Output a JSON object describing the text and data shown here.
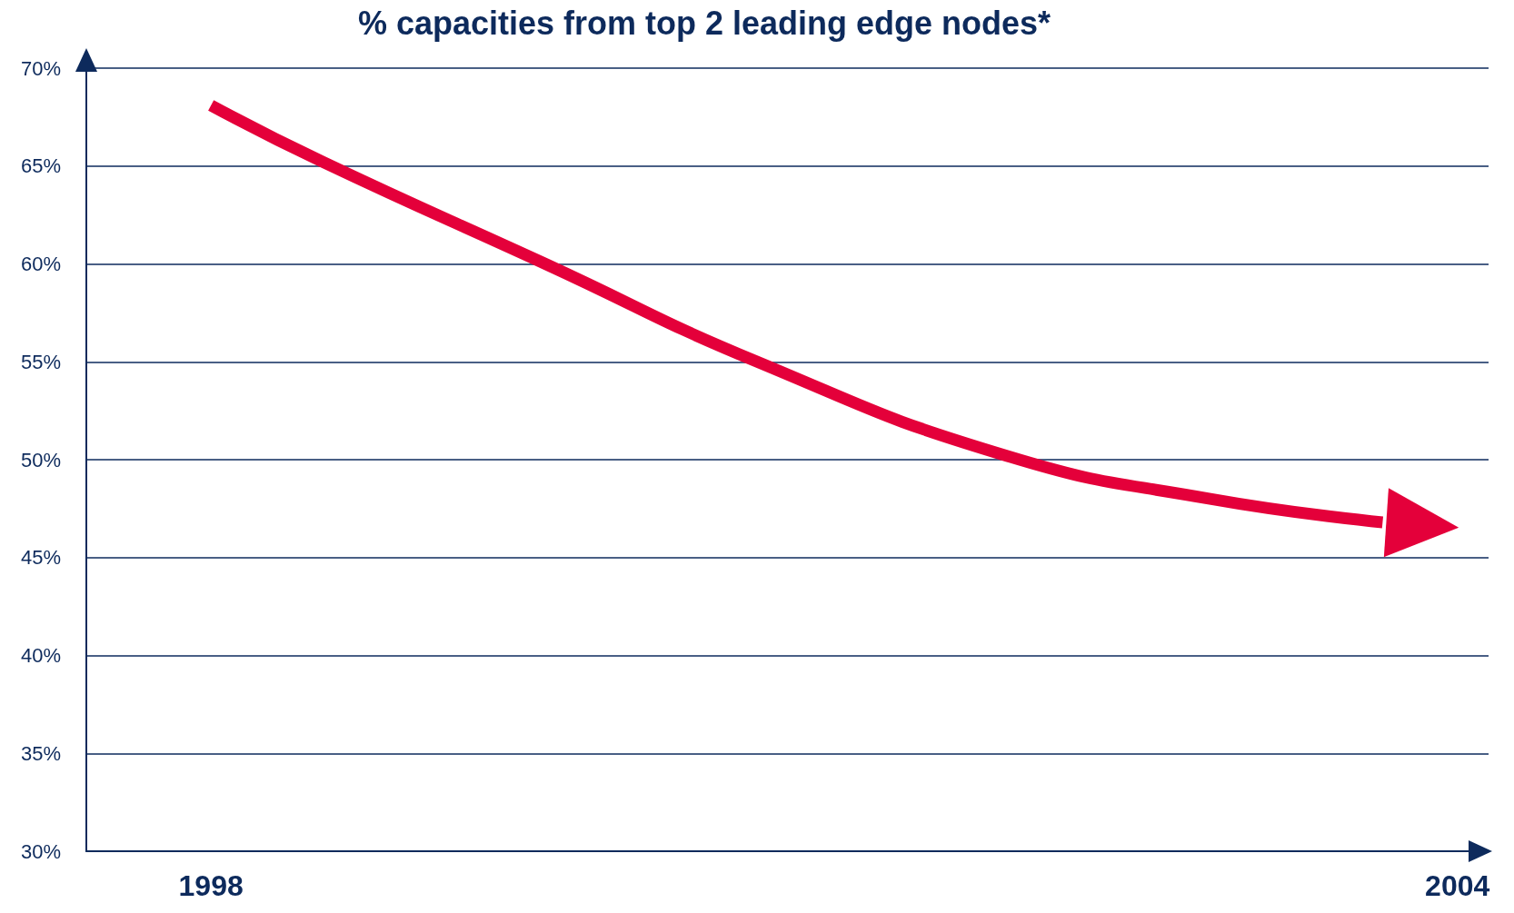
{
  "chart_data": {
    "type": "line",
    "title": "% capacities from top 2 leading edge nodes*",
    "x": [
      1998,
      1998.54,
      1999.61,
      2000.63,
      2001.83,
      2002.81,
      2003.64
    ],
    "series": [
      {
        "color": "#e4003a",
        "values": [
          68.1,
          65.2,
          60,
          55,
          50.2,
          48.0,
          46.8
        ]
      }
    ],
    "xlim": [
      1997.4,
      2004.15
    ],
    "xticks": [
      1998,
      2004
    ],
    "ylim": [
      30,
      70
    ],
    "yticks": [
      {
        "value": 30,
        "label": "30%"
      },
      {
        "value": 35,
        "label": "35%"
      },
      {
        "value": 40,
        "label": "40%"
      },
      {
        "value": 45,
        "label": "45%"
      },
      {
        "value": 50,
        "label": "50%"
      },
      {
        "value": 55,
        "label": "55%"
      },
      {
        "value": 60,
        "label": "60%"
      },
      {
        "value": 65,
        "label": "65%"
      },
      {
        "value": 70,
        "label": "70%"
      }
    ],
    "grid": "y",
    "marker": "none",
    "line_style": "solid"
  }
}
